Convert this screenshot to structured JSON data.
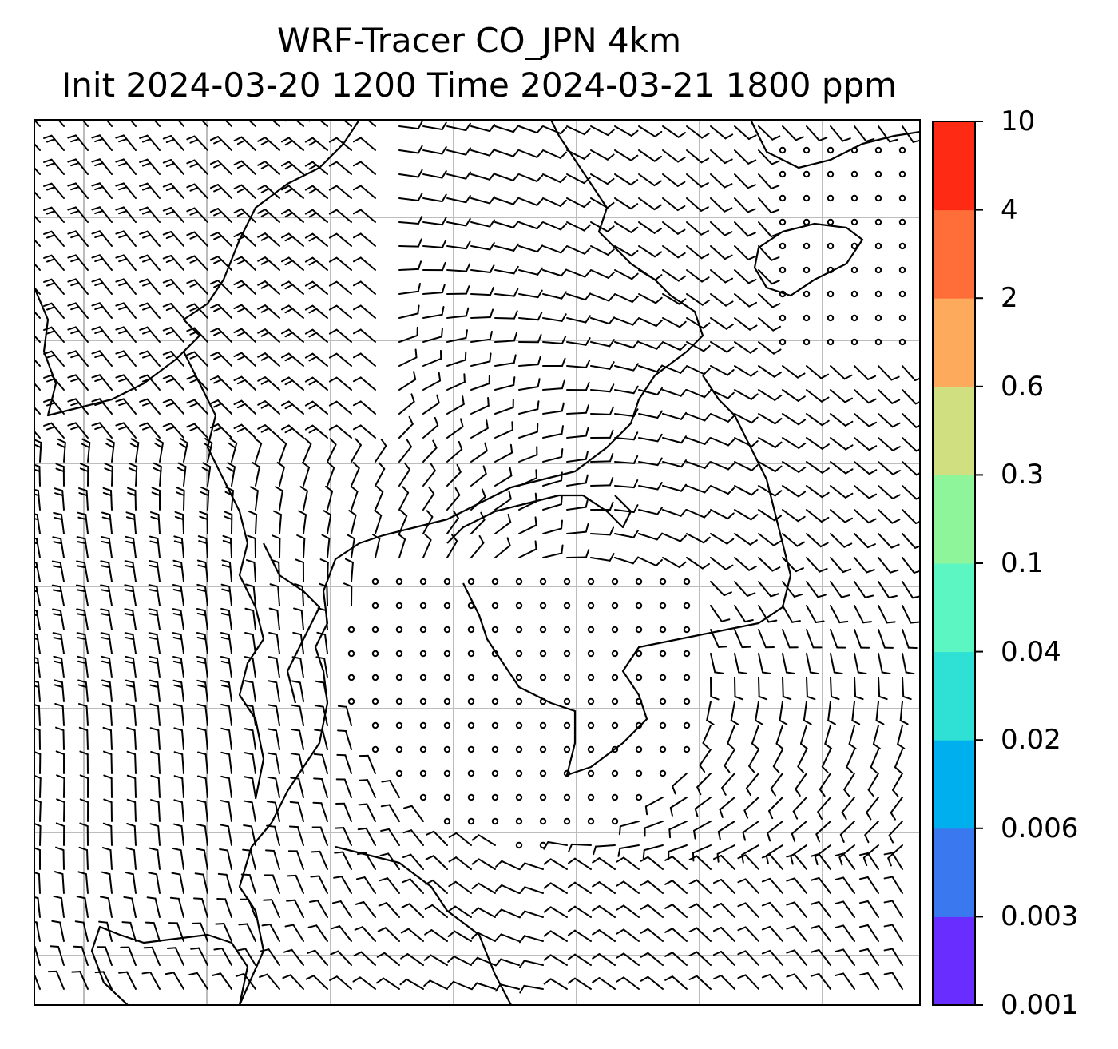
{
  "title": {
    "line1": "WRF-Tracer CO_JPN 4km",
    "line2": "Init 2024-03-20 1200 Time 2024-03-21 1800 ppm"
  },
  "colorbar": {
    "levels": [
      "0.001",
      "0.003",
      "0.006",
      "0.02",
      "0.04",
      "0.1",
      "0.3",
      "0.6",
      "2",
      "4",
      "10"
    ],
    "colors": [
      "#6a2dff",
      "#3a78f0",
      "#00b0ee",
      "#2fe0d4",
      "#5cf6c2",
      "#8ef59a",
      "#d0e080",
      "#fdaa5c",
      "#ff6e38",
      "#ff2a14"
    ]
  },
  "map": {
    "gridlines": true,
    "grid_color": "#bdbdbd",
    "coastline_color": "#000000",
    "wind_barbs": true
  }
}
